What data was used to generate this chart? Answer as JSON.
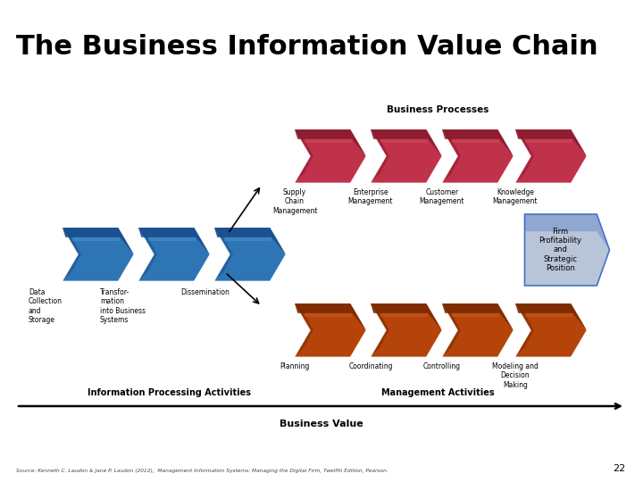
{
  "title": "The Business Information Value Chain",
  "title_fontsize": 22,
  "bg_color": "#ffffff",
  "blue_main": "#2E75B6",
  "blue_dark": "#1A4D8C",
  "blue_light": "#5B9BD5",
  "red_main": "#C0314A",
  "red_dark": "#8B1A2E",
  "red_light": "#D4556A",
  "orange_main": "#B5440A",
  "orange_dark": "#7A2A00",
  "orange_light": "#D4622A",
  "gray_main": "#B8C4D8",
  "gray_dark": "#7A8BAA",
  "gray_blue": "#4472C4",
  "blue_arrows_labels": [
    "Data\nCollection\nand\nStorage",
    "Transfor-\nmation\ninto Business\nSystems",
    "Dissemination"
  ],
  "red_arrows_labels": [
    "Supply\nChain\nManagement",
    "Enterprise\nManagement",
    "Customer\nManagement",
    "Knowledge\nManagement"
  ],
  "orange_arrows_labels": [
    "Planning",
    "Coordinating",
    "Controlling",
    "Modeling and\nDecision\nMaking"
  ],
  "firm_text": "Firm\nProfitability\nand\nStrategic\nPosition",
  "business_processes_label": "Business Processes",
  "info_proc_label": "Information Processing Activities",
  "mgmt_label": "Management Activities",
  "business_value_label": "Business Value",
  "source_text": "Source: Kenneth C. Laudon & Jane P. Laudon (2012),  Management Information Systems: Managing the Digital Firm, Twelfth Edition, Pearson.",
  "page_num": "22"
}
